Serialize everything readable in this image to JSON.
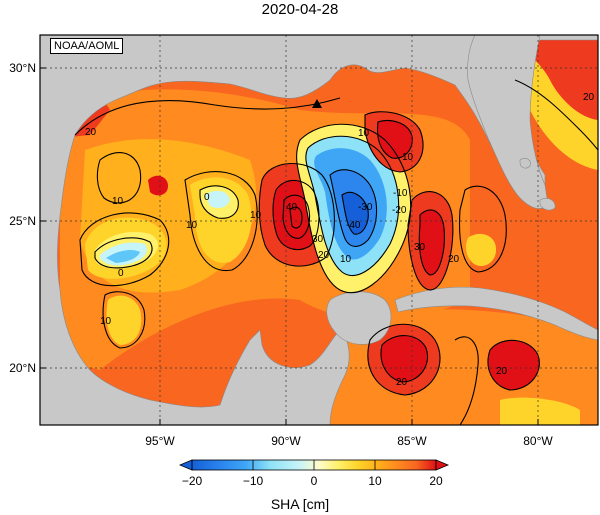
{
  "title": "2020-04-28",
  "credit": "NOAA/AOML",
  "latitude_labels": [
    "30°N",
    "25°N",
    "20°N"
  ],
  "longitude_labels": [
    "95°W",
    "90°W",
    "85°W",
    "80°W"
  ],
  "contour_labels": [
    "20",
    "10",
    "10",
    "0",
    "10",
    "10",
    "0",
    "40",
    "30",
    "20",
    "10",
    "10",
    "-10",
    "-20",
    "-30",
    "-40",
    "30",
    "20",
    "10",
    "20",
    "20",
    "20"
  ],
  "colorbar": {
    "label": "SHA [cm]",
    "ticks": [
      "−20",
      "−10",
      "0",
      "10",
      "20"
    ],
    "range": [
      -20,
      20
    ],
    "colors": [
      "#1560d8",
      "#2c86ee",
      "#3fa6f6",
      "#5fc6f8",
      "#8ee2f7",
      "#c7f4f8",
      "#fffccc",
      "#fff16a",
      "#ffd42a",
      "#ffb01c",
      "#ff8a1f",
      "#f86620",
      "#ee3b1f",
      "#e01016"
    ]
  },
  "land_color": "#c8c8c8",
  "marker": "triangle-marker"
}
